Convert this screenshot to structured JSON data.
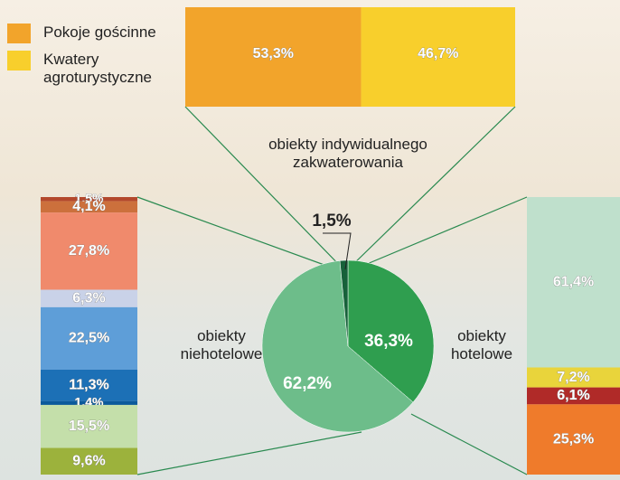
{
  "chart_data": [
    {
      "type": "pie",
      "categories": [
        "obiekty hotelowe",
        "obiekty niehotelowe",
        "obiekty indywidualnego zakwaterowania"
      ],
      "values": [
        36.3,
        62.2,
        1.5
      ],
      "value_labels": [
        "36,3%",
        "62,2%",
        "1,5%"
      ],
      "colors": [
        "#2f9e4f",
        "#6dbd8a",
        "#17613a"
      ]
    },
    {
      "type": "stacked-bar",
      "series": [
        {
          "name": "Pokoje gościnne",
          "color": "#f2a42b",
          "values": [
            53.3
          ],
          "value_labels": [
            "53,3%"
          ]
        },
        {
          "name": "Kwatery agroturystyczne",
          "color": "#f8cf2c",
          "values": [
            46.7
          ],
          "value_labels": [
            "46,7%"
          ]
        }
      ]
    },
    {
      "type": "stacked-bar",
      "values": [
        1.5,
        4.1,
        27.8,
        6.3,
        22.5,
        11.3,
        1.4,
        15.5,
        9.6
      ],
      "value_labels": [
        "1,5%",
        "4,1%",
        "27,8%",
        "6,3%",
        "22,5%",
        "11,3%",
        "1,4%",
        "15,5%",
        "9,6%"
      ],
      "colors": [
        "#b3482c",
        "#cc703c",
        "#f08a6c",
        "#c9d2e8",
        "#5e9ed8",
        "#1c70b6",
        "#0b5a9b",
        "#c4dfaa",
        "#9cb23c"
      ]
    },
    {
      "type": "stacked-bar",
      "values": [
        61.4,
        7.2,
        6.1,
        25.3
      ],
      "value_labels": [
        "61,4%",
        "7,2%",
        "6,1%",
        "25,3%"
      ],
      "colors": [
        "#bfe0cc",
        "#e9d43b",
        "#b02a28",
        "#ef7b2b"
      ]
    }
  ]
}
